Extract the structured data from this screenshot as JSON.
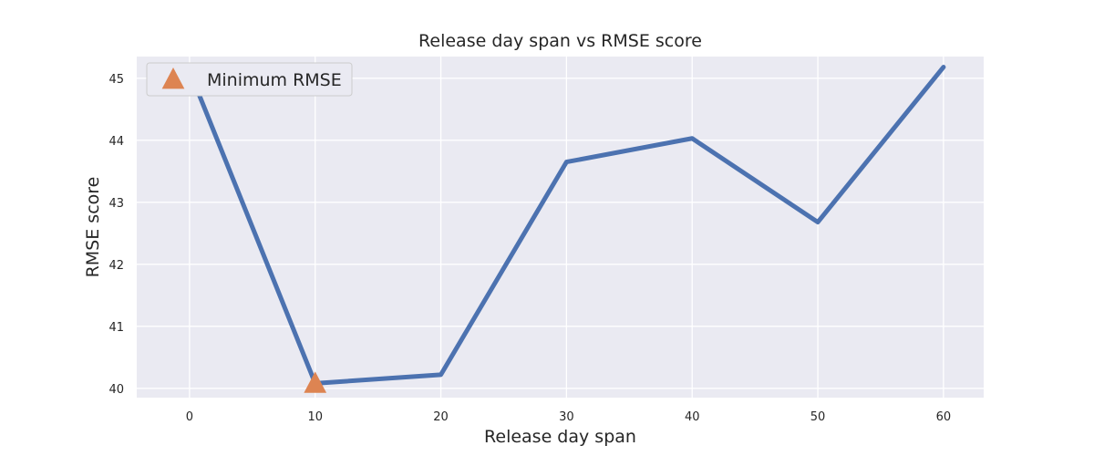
{
  "chart_data": {
    "type": "line",
    "title": "Release day span vs RMSE score",
    "xlabel": "Release day span",
    "ylabel": "RMSE score",
    "xlim": [
      -4.2,
      63.2
    ],
    "ylim": [
      39.85,
      45.35
    ],
    "x_ticks": [
      0,
      10,
      20,
      30,
      40,
      50,
      60
    ],
    "y_ticks": [
      40,
      41,
      42,
      43,
      44,
      45
    ],
    "grid": true,
    "legend_position": "top-left",
    "series": [
      {
        "x": [
          0,
          10,
          20,
          30,
          40,
          50,
          60
        ],
        "y": [
          45.12,
          40.08,
          40.22,
          43.65,
          44.03,
          42.68,
          45.18
        ],
        "color": "#4c72b0"
      }
    ],
    "markers": [
      {
        "name": "Minimum RMSE",
        "x": 10,
        "y": 40.08,
        "shape": "triangle-up",
        "color": "#dd8452"
      }
    ]
  }
}
